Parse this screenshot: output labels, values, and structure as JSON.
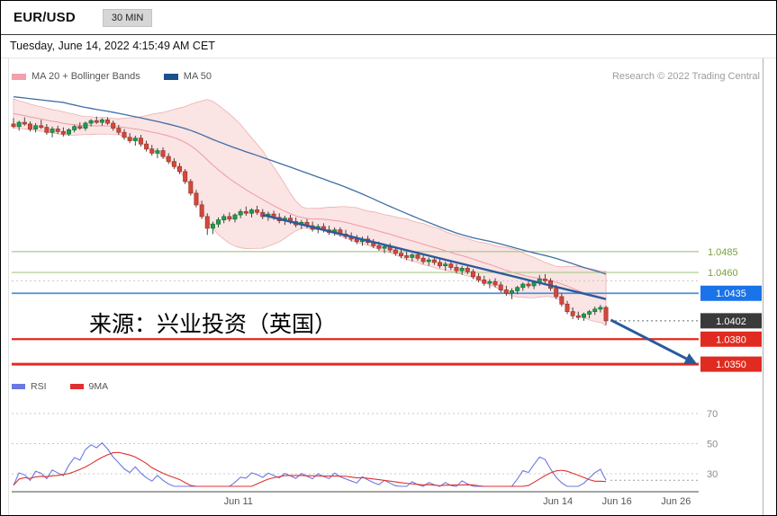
{
  "header": {
    "symbol": "EUR/USD",
    "timeframe": "30 MIN"
  },
  "datetime": "Tuesday, June 14, 2022 4:15:49 AM CET",
  "legend": {
    "ma20": "MA 20 + Bollinger Bands",
    "ma50": "MA 50",
    "research": "Research © 2022 Trading Central"
  },
  "rsi_legend": {
    "rsi": "RSI",
    "ma": "9MA"
  },
  "watermark": "来源：兴业投资（英国）",
  "colors": {
    "up": "#1f9d4f",
    "up_border": "#157a3a",
    "down": "#d6483c",
    "down_border": "#a5362c",
    "band_fill": "#f7d2d2",
    "band_edge": "#eeafaf",
    "ma20": "#ef9aa6",
    "ma50": "#3f6ea6",
    "trend": "#2a5a9c",
    "green_level": "#abc78a",
    "green_text": "#79a23b",
    "blue_level": "#4a90d9",
    "blue_label_bg": "#1a73e8",
    "last_label_bg": "#3a3a3a",
    "red_level": "#e02b20",
    "rsi": "#6b79e0",
    "rsi_ma": "#e03030"
  },
  "chart_data": {
    "type": "candlestick",
    "title": "EUR/USD 30 MIN with MA20 + Bollinger Bands, MA50 and RSI/9MA subpanel",
    "price_range": [
      1.0335,
      1.068
    ],
    "levels": [
      {
        "value": 1.0485,
        "label": "1.0485",
        "style": "green"
      },
      {
        "value": 1.046,
        "label": "1.0460",
        "style": "green"
      },
      {
        "value": 1.045,
        "label": null,
        "style": "dotted"
      },
      {
        "value": 1.0435,
        "label": "1.0435",
        "style": "blue"
      },
      {
        "value": 1.0402,
        "label": "1.0402",
        "style": "last"
      },
      {
        "value": 1.038,
        "label": "1.0380",
        "style": "red"
      },
      {
        "value": 1.035,
        "label": "1.0350",
        "style": "red-bold"
      }
    ],
    "trendline": {
      "i1": 45,
      "p1": 1.0529,
      "i2": 107,
      "p2": 1.0428
    },
    "forecast_arrow": {
      "f1": 0.872,
      "p1": 1.0403,
      "f2": 0.993,
      "p2": 1.0352
    },
    "x_ticks": [
      {
        "label": "Jun 11",
        "f": 0.33
      },
      {
        "label": "Jun 14",
        "f": 0.795
      },
      {
        "label": "Jun 16",
        "f": 0.881
      },
      {
        "label": "Jun 26",
        "f": 0.967
      }
    ],
    "rsi_grid": [
      70,
      50,
      30
    ],
    "indicators": {
      "ma20_period": 20,
      "ma50_period": 50,
      "boll_k": 2,
      "rsi_period": 14,
      "rsi_ma_period": 9
    },
    "pre_closes": [
      1.0712,
      1.0708,
      1.071,
      1.0705,
      1.0701,
      1.0703,
      1.0698,
      1.0694,
      1.0696,
      1.0691,
      1.0688,
      1.069,
      1.0685,
      1.0681,
      1.0683,
      1.0678,
      1.0675,
      1.0677,
      1.0672,
      1.0669,
      1.0671,
      1.0666,
      1.0663,
      1.0665,
      1.066,
      1.0657,
      1.0659,
      1.0655,
      1.0652,
      1.0654,
      1.065,
      1.0647,
      1.0649,
      1.0645,
      1.0643,
      1.0646,
      1.0642,
      1.064,
      1.0643,
      1.0641
    ],
    "candles": [
      [
        1.0638,
        1.0645,
        1.0633,
        1.0635
      ],
      [
        1.0635,
        1.0642,
        1.063,
        1.064
      ],
      [
        1.064,
        1.0646,
        1.0636,
        1.0638
      ],
      [
        1.0638,
        1.0641,
        1.0629,
        1.0632
      ],
      [
        1.0632,
        1.0639,
        1.0628,
        1.0636
      ],
      [
        1.0636,
        1.0643,
        1.0632,
        1.0634
      ],
      [
        1.0634,
        1.0638,
        1.0625,
        1.0628
      ],
      [
        1.0628,
        1.0635,
        1.0622,
        1.0632
      ],
      [
        1.0632,
        1.0636,
        1.0626,
        1.0629
      ],
      [
        1.0629,
        1.0634,
        1.0623,
        1.0626
      ],
      [
        1.0626,
        1.0633,
        1.0624,
        1.0631
      ],
      [
        1.0631,
        1.0637,
        1.0628,
        1.0635
      ],
      [
        1.0635,
        1.064,
        1.0631,
        1.0633
      ],
      [
        1.0633,
        1.0641,
        1.063,
        1.0639
      ],
      [
        1.0639,
        1.0644,
        1.0635,
        1.0642
      ],
      [
        1.0642,
        1.0647,
        1.0638,
        1.064
      ],
      [
        1.064,
        1.0645,
        1.0636,
        1.0643
      ],
      [
        1.0643,
        1.0646,
        1.0637,
        1.0639
      ],
      [
        1.0639,
        1.0642,
        1.063,
        1.0633
      ],
      [
        1.0633,
        1.0637,
        1.0625,
        1.0628
      ],
      [
        1.0628,
        1.0632,
        1.0619,
        1.0622
      ],
      [
        1.0622,
        1.0627,
        1.0615,
        1.0618
      ],
      [
        1.0618,
        1.0624,
        1.0612,
        1.0621
      ],
      [
        1.0621,
        1.0625,
        1.0611,
        1.0614
      ],
      [
        1.0614,
        1.0618,
        1.0605,
        1.0608
      ],
      [
        1.0608,
        1.0613,
        1.06,
        1.0603
      ],
      [
        1.0603,
        1.0609,
        1.0597,
        1.0606
      ],
      [
        1.0606,
        1.061,
        1.0596,
        1.0599
      ],
      [
        1.0599,
        1.0603,
        1.059,
        1.0593
      ],
      [
        1.0593,
        1.0597,
        1.0584,
        1.0587
      ],
      [
        1.0587,
        1.0591,
        1.0578,
        1.0581
      ],
      [
        1.0581,
        1.0584,
        1.0566,
        1.0569
      ],
      [
        1.0569,
        1.0572,
        1.0552,
        1.0555
      ],
      [
        1.0555,
        1.0559,
        1.0538,
        1.0541
      ],
      [
        1.0541,
        1.0546,
        1.0524,
        1.0527
      ],
      [
        1.0527,
        1.0531,
        1.0505,
        1.0513
      ],
      [
        1.0513,
        1.0521,
        1.0506,
        1.0518
      ],
      [
        1.0518,
        1.0526,
        1.0514,
        1.0523
      ],
      [
        1.0523,
        1.053,
        1.0519,
        1.0527
      ],
      [
        1.0527,
        1.0532,
        1.0521,
        1.0524
      ],
      [
        1.0524,
        1.0531,
        1.052,
        1.0529
      ],
      [
        1.0529,
        1.0536,
        1.0525,
        1.0533
      ],
      [
        1.0533,
        1.0539,
        1.0528,
        1.0531
      ],
      [
        1.0531,
        1.0537,
        1.0526,
        1.0535
      ],
      [
        1.0535,
        1.054,
        1.0529,
        1.0532
      ],
      [
        1.0532,
        1.0536,
        1.0524,
        1.0527
      ],
      [
        1.0527,
        1.0533,
        1.0522,
        1.053
      ],
      [
        1.053,
        1.0534,
        1.0523,
        1.0526
      ],
      [
        1.0526,
        1.0531,
        1.0519,
        1.0522
      ],
      [
        1.0522,
        1.0528,
        1.0517,
        1.0525
      ],
      [
        1.0525,
        1.0529,
        1.0518,
        1.0521
      ],
      [
        1.0521,
        1.0526,
        1.0514,
        1.0517
      ],
      [
        1.0517,
        1.0523,
        1.0512,
        1.052
      ],
      [
        1.052,
        1.0524,
        1.0513,
        1.0516
      ],
      [
        1.0516,
        1.0521,
        1.0509,
        1.0512
      ],
      [
        1.0512,
        1.0518,
        1.0507,
        1.0515
      ],
      [
        1.0515,
        1.0519,
        1.0508,
        1.0511
      ],
      [
        1.0511,
        1.0516,
        1.0505,
        1.0508
      ],
      [
        1.0508,
        1.0514,
        1.0504,
        1.0511
      ],
      [
        1.0511,
        1.0514,
        1.0503,
        1.0506
      ],
      [
        1.0506,
        1.0511,
        1.05,
        1.0503
      ],
      [
        1.0503,
        1.0508,
        1.0497,
        1.05
      ],
      [
        1.05,
        1.0505,
        1.0494,
        1.0497
      ],
      [
        1.0497,
        1.0503,
        1.0492,
        1.05
      ],
      [
        1.05,
        1.0504,
        1.0493,
        1.0496
      ],
      [
        1.0496,
        1.05,
        1.0489,
        1.0492
      ],
      [
        1.0492,
        1.0497,
        1.0486,
        1.0489
      ],
      [
        1.0489,
        1.0494,
        1.0483,
        1.0491
      ],
      [
        1.0491,
        1.0495,
        1.0484,
        1.0487
      ],
      [
        1.0487,
        1.0491,
        1.048,
        1.0483
      ],
      [
        1.0483,
        1.0488,
        1.0477,
        1.048
      ],
      [
        1.048,
        1.0485,
        1.0475,
        1.0478
      ],
      [
        1.0478,
        1.0483,
        1.0473,
        1.0481
      ],
      [
        1.0481,
        1.0485,
        1.0474,
        1.0477
      ],
      [
        1.0477,
        1.0481,
        1.047,
        1.0473
      ],
      [
        1.0473,
        1.0478,
        1.0468,
        1.0475
      ],
      [
        1.0475,
        1.0479,
        1.0469,
        1.0472
      ],
      [
        1.0472,
        1.0476,
        1.0465,
        1.0468
      ],
      [
        1.0468,
        1.0473,
        1.0462,
        1.047
      ],
      [
        1.047,
        1.0474,
        1.0463,
        1.0466
      ],
      [
        1.0466,
        1.047,
        1.0459,
        1.0462
      ],
      [
        1.0462,
        1.0468,
        1.0457,
        1.0465
      ],
      [
        1.0465,
        1.0469,
        1.0458,
        1.0461
      ],
      [
        1.0461,
        1.0464,
        1.0452,
        1.0455
      ],
      [
        1.0455,
        1.0459,
        1.0448,
        1.0451
      ],
      [
        1.0451,
        1.0456,
        1.0444,
        1.0447
      ],
      [
        1.0447,
        1.0452,
        1.0441,
        1.0449
      ],
      [
        1.0449,
        1.0453,
        1.0442,
        1.0445
      ],
      [
        1.0445,
        1.0449,
        1.0436,
        1.0439
      ],
      [
        1.0439,
        1.0444,
        1.0432,
        1.0435
      ],
      [
        1.0435,
        1.0441,
        1.0428,
        1.0438
      ],
      [
        1.0438,
        1.0444,
        1.0434,
        1.0442
      ],
      [
        1.0442,
        1.0448,
        1.0438,
        1.0446
      ],
      [
        1.0446,
        1.0452,
        1.0441,
        1.0444
      ],
      [
        1.0444,
        1.045,
        1.044,
        1.0448
      ],
      [
        1.0448,
        1.0457,
        1.0444,
        1.0452
      ],
      [
        1.0452,
        1.0458,
        1.0447,
        1.045
      ],
      [
        1.045,
        1.0453,
        1.0438,
        1.0441
      ],
      [
        1.0441,
        1.0445,
        1.0428,
        1.0431
      ],
      [
        1.0431,
        1.0435,
        1.0419,
        1.0422
      ],
      [
        1.0422,
        1.0426,
        1.041,
        1.0413
      ],
      [
        1.0413,
        1.0418,
        1.0404,
        1.0408
      ],
      [
        1.0408,
        1.0413,
        1.0403,
        1.0406
      ],
      [
        1.0406,
        1.0412,
        1.0402,
        1.041
      ],
      [
        1.041,
        1.0415,
        1.0405,
        1.0413
      ],
      [
        1.0413,
        1.0419,
        1.0409,
        1.0416
      ],
      [
        1.0416,
        1.0421,
        1.0412,
        1.0418
      ],
      [
        1.0418,
        1.042,
        1.0397,
        1.0402
      ]
    ]
  }
}
